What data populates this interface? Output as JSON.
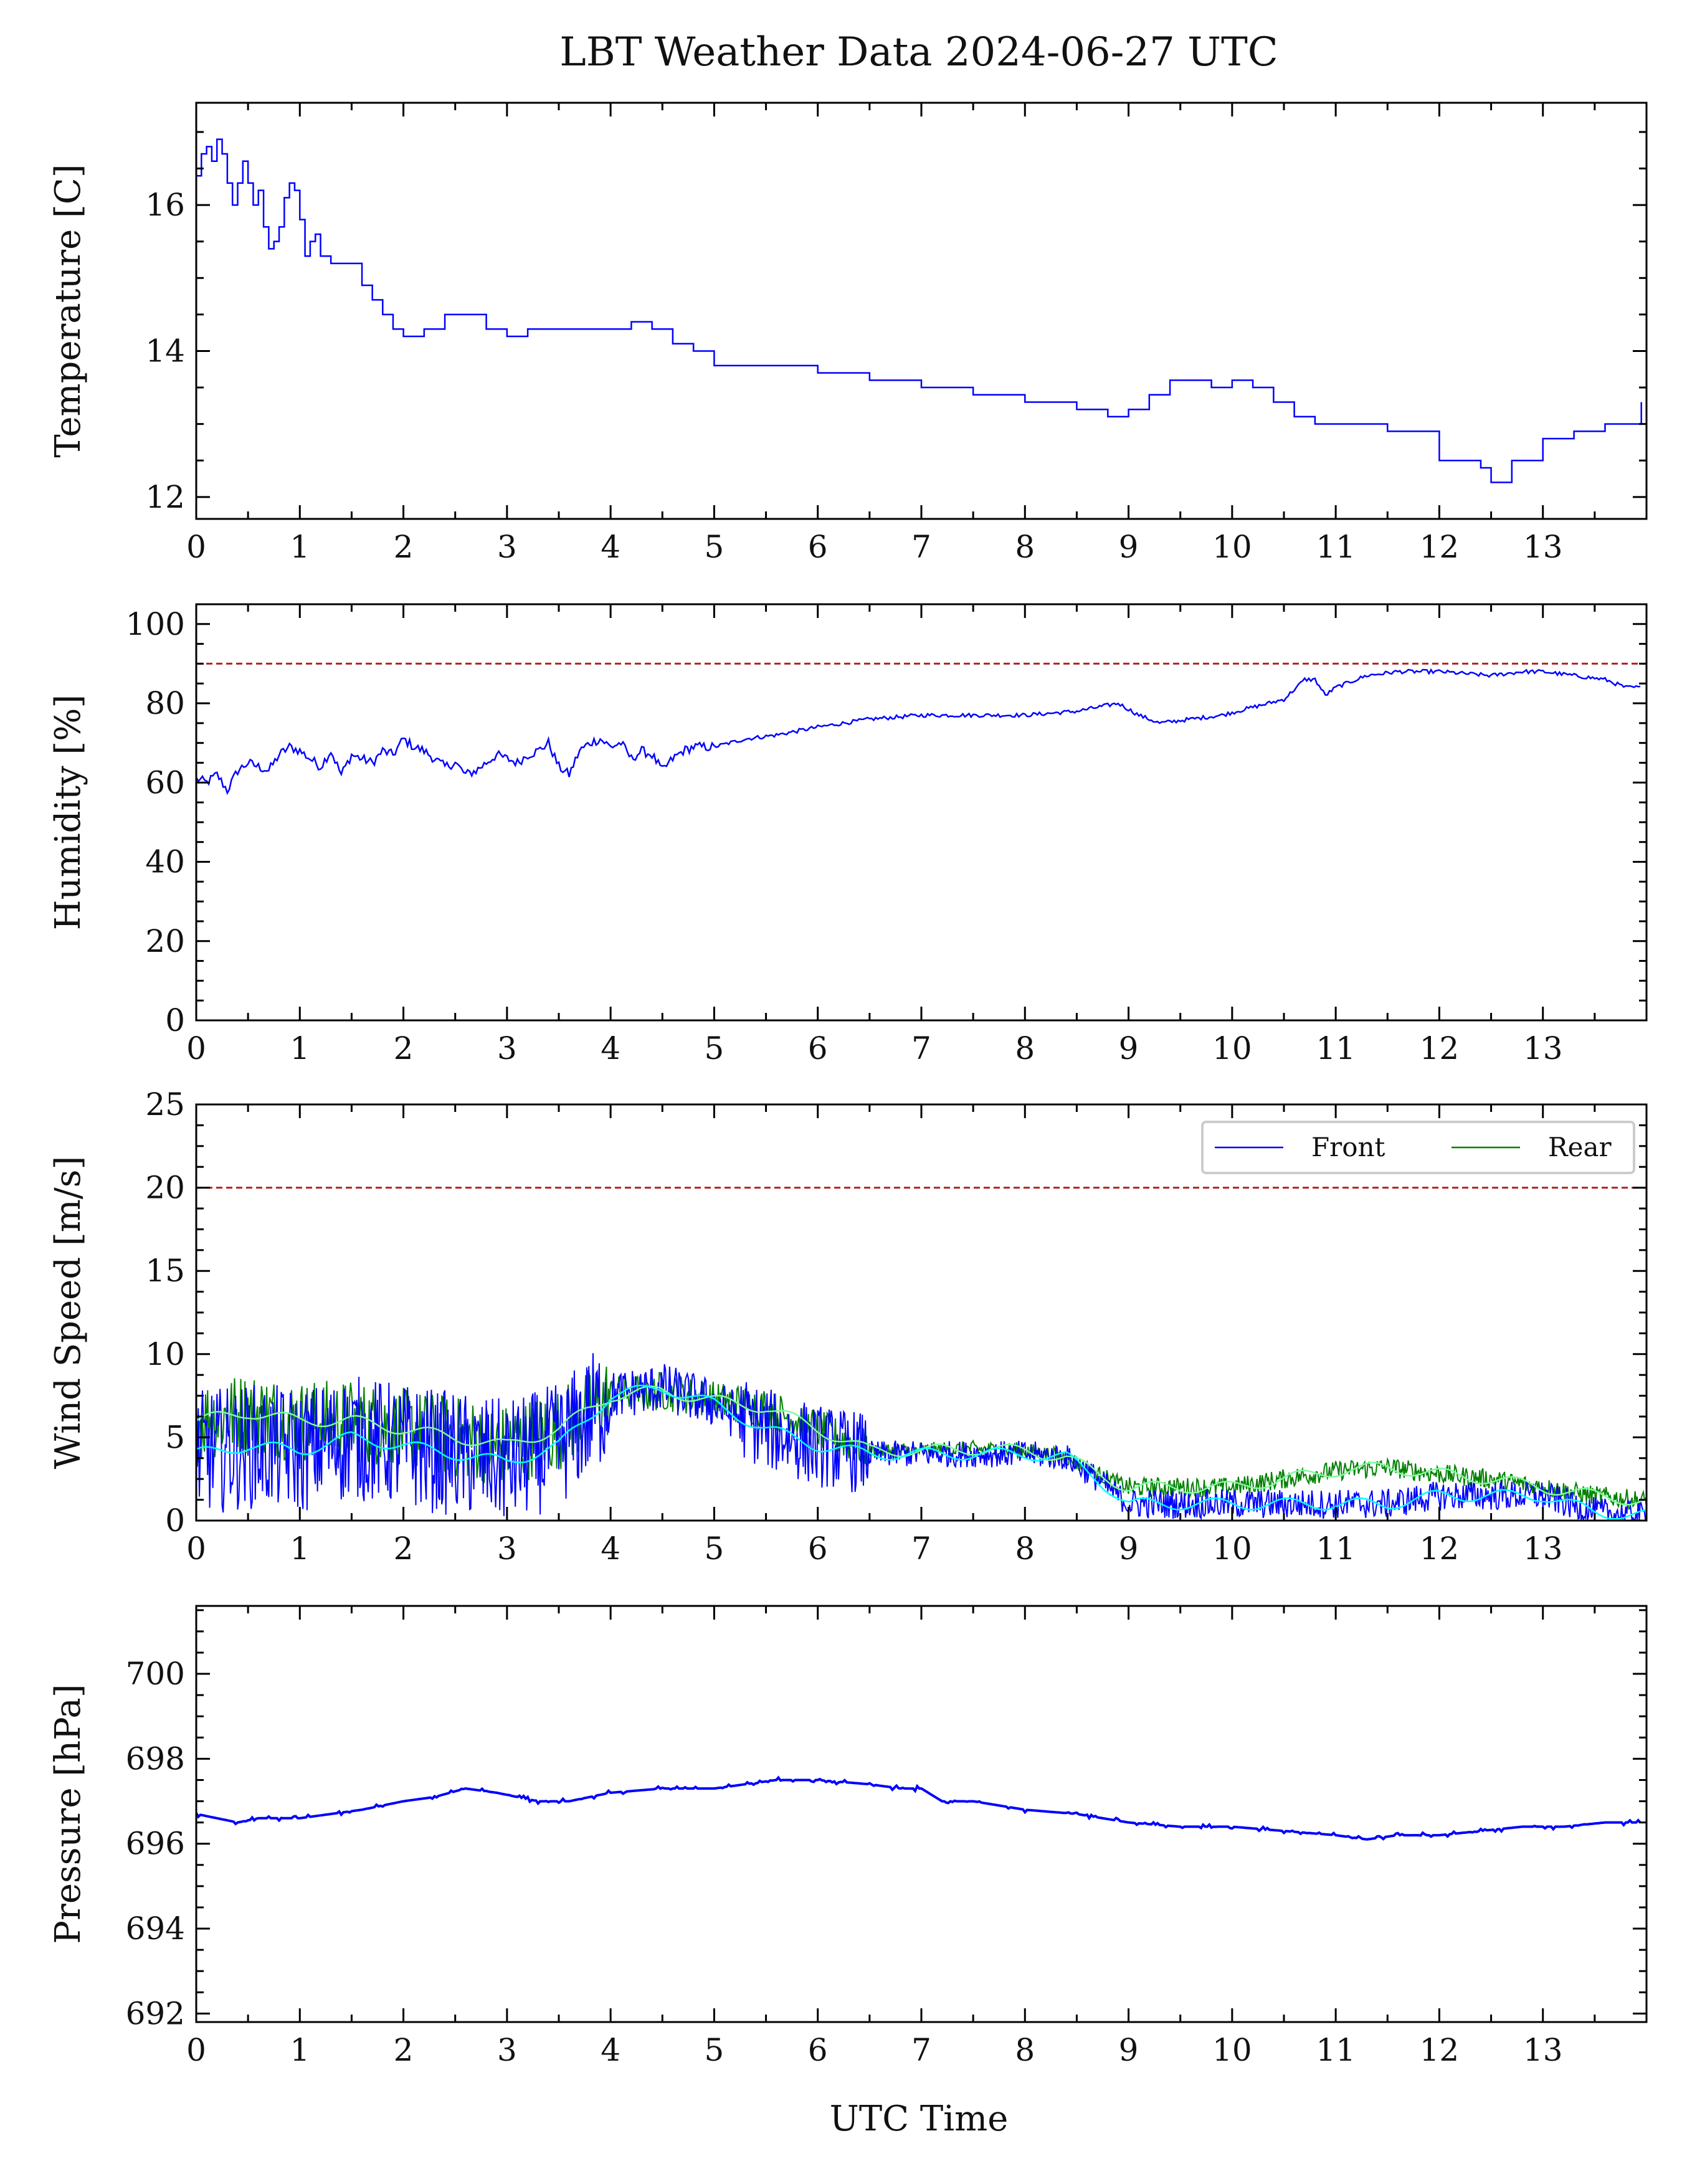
{
  "figure": {
    "title": "LBT Weather Data 2024-06-27 UTC",
    "xlabel": "UTC Time"
  },
  "colors": {
    "primary_series": "#0000ff",
    "rear_series": "#008000",
    "smooth_overlay": "#00ffff",
    "threshold": "#b22222",
    "axis": "#000000",
    "legend_border": "#cccccc"
  },
  "chart_data": [
    {
      "type": "line",
      "panel": "temperature",
      "ylabel": "Temperature [C]",
      "xlim": [
        0,
        14
      ],
      "ylim": [
        11.7,
        17.4
      ],
      "xticks": [
        0,
        1,
        2,
        3,
        4,
        5,
        6,
        7,
        8,
        9,
        10,
        11,
        12,
        13
      ],
      "yticks": [
        12,
        14,
        16
      ],
      "grid": false,
      "series": [
        {
          "x": [
            0,
            0.05,
            0.1,
            0.15,
            0.2,
            0.25,
            0.3,
            0.35,
            0.4,
            0.45,
            0.5,
            0.55,
            0.6,
            0.65,
            0.7,
            0.75,
            0.8,
            0.85,
            0.9,
            0.95,
            1.0,
            1.05,
            1.1,
            1.15,
            1.2,
            1.3,
            1.4,
            1.5,
            1.6,
            1.7,
            1.8,
            1.9,
            2.0,
            2.2,
            2.4,
            2.6,
            2.8,
            3.0,
            3.2,
            3.4,
            3.6,
            3.8,
            4.0,
            4.2,
            4.4,
            4.6,
            4.8,
            5.0,
            5.5,
            6.0,
            6.5,
            7.0,
            7.5,
            8.0,
            8.5,
            8.8,
            9.0,
            9.2,
            9.4,
            9.6,
            9.8,
            10.0,
            10.2,
            10.4,
            10.6,
            10.8,
            11.0,
            11.5,
            12.0,
            12.2,
            12.4,
            12.5,
            12.7,
            13.0,
            13.3,
            13.6,
            13.95
          ],
          "y": [
            16.4,
            16.7,
            16.8,
            16.6,
            16.9,
            16.7,
            16.3,
            16.0,
            16.3,
            16.6,
            16.3,
            16.0,
            16.2,
            15.7,
            15.4,
            15.5,
            15.7,
            16.1,
            16.3,
            16.2,
            15.8,
            15.3,
            15.5,
            15.6,
            15.3,
            15.2,
            15.2,
            15.2,
            14.9,
            14.7,
            14.5,
            14.3,
            14.2,
            14.3,
            14.5,
            14.5,
            14.3,
            14.2,
            14.3,
            14.3,
            14.3,
            14.3,
            14.3,
            14.4,
            14.3,
            14.1,
            14.0,
            13.8,
            13.8,
            13.7,
            13.6,
            13.5,
            13.4,
            13.3,
            13.2,
            13.1,
            13.2,
            13.4,
            13.6,
            13.6,
            13.5,
            13.6,
            13.5,
            13.3,
            13.1,
            13.0,
            13.0,
            12.9,
            12.5,
            12.5,
            12.4,
            12.2,
            12.5,
            12.8,
            12.9,
            13.0,
            13.3
          ]
        }
      ]
    },
    {
      "type": "line",
      "panel": "humidity",
      "ylabel": "Humidity [%]",
      "xlim": [
        0,
        14
      ],
      "ylim": [
        0,
        105
      ],
      "xticks": [
        0,
        1,
        2,
        3,
        4,
        5,
        6,
        7,
        8,
        9,
        10,
        11,
        12,
        13
      ],
      "yticks": [
        0,
        20,
        40,
        60,
        80,
        100
      ],
      "threshold": 90,
      "grid": false,
      "series": [
        {
          "x": [
            0,
            0.1,
            0.2,
            0.3,
            0.4,
            0.5,
            0.6,
            0.7,
            0.8,
            0.9,
            1.0,
            1.1,
            1.2,
            1.3,
            1.4,
            1.5,
            1.6,
            1.7,
            1.8,
            1.9,
            2.0,
            2.1,
            2.2,
            2.3,
            2.4,
            2.5,
            2.6,
            2.7,
            2.8,
            2.9,
            3.0,
            3.1,
            3.2,
            3.3,
            3.4,
            3.5,
            3.6,
            3.7,
            3.8,
            3.9,
            4.0,
            4.1,
            4.2,
            4.3,
            4.4,
            4.5,
            4.6,
            4.7,
            4.8,
            5.0,
            5.3,
            5.6,
            6.0,
            6.5,
            7.0,
            7.5,
            8.0,
            8.5,
            8.9,
            9.1,
            9.3,
            9.6,
            9.9,
            10.2,
            10.5,
            10.7,
            10.8,
            10.9,
            11.0,
            11.3,
            11.6,
            12.0,
            12.5,
            12.8,
            13.0,
            13.3,
            13.6,
            13.8,
            13.95
          ],
          "y": [
            61,
            60,
            62,
            58,
            63,
            65,
            64,
            63,
            67,
            69,
            68,
            66,
            64,
            68,
            62,
            67,
            66,
            65,
            68,
            67,
            71,
            69,
            68,
            66,
            64,
            65,
            62,
            63,
            65,
            67,
            66,
            65,
            67,
            68,
            70,
            64,
            62,
            68,
            70,
            71,
            69,
            70,
            66,
            68,
            67,
            63,
            66,
            68,
            69,
            69,
            71,
            72,
            74,
            76,
            77,
            77,
            77,
            78,
            80,
            77,
            75,
            76,
            77,
            79,
            81,
            86,
            86,
            82,
            84,
            87,
            88,
            88,
            87,
            88,
            88,
            87,
            86,
            84,
            84
          ]
        }
      ]
    },
    {
      "type": "line",
      "panel": "wind",
      "ylabel": "Wind Speed [m/s]",
      "xlim": [
        0,
        14
      ],
      "ylim": [
        0,
        25
      ],
      "xticks": [
        0,
        1,
        2,
        3,
        4,
        5,
        6,
        7,
        8,
        9,
        10,
        11,
        12,
        13
      ],
      "yticks": [
        0,
        5,
        10,
        15,
        20,
        25
      ],
      "threshold": 20,
      "legend_position": "top-right",
      "grid": false,
      "series": [
        {
          "name": "Front",
          "x": [
            0,
            0.5,
            1.0,
            1.5,
            2.0,
            2.5,
            3.0,
            3.5,
            4.0,
            4.5,
            5.0,
            5.5,
            6.0,
            6.5,
            7.0,
            7.5,
            8.0,
            8.4,
            8.7,
            9.0,
            9.5,
            10.0,
            10.5,
            11.0,
            11.5,
            12.0,
            12.5,
            13.0,
            13.5,
            13.95
          ],
          "y": [
            4.0,
            4.5,
            4.2,
            5.0,
            4.5,
            4.0,
            3.5,
            4.5,
            7.5,
            8.0,
            7.0,
            5.5,
            4.5,
            4.0,
            4.0,
            4.0,
            4.0,
            3.8,
            2.5,
            1.0,
            1.0,
            1.0,
            1.0,
            1.0,
            1.0,
            1.5,
            1.5,
            1.5,
            0.5,
            0.3
          ]
        },
        {
          "name": "Rear",
          "x": [
            0,
            0.5,
            1.0,
            1.5,
            2.0,
            2.5,
            3.0,
            3.5,
            4.0,
            4.5,
            5.0,
            5.5,
            6.0,
            6.5,
            7.0,
            7.5,
            8.0,
            8.4,
            8.7,
            9.0,
            9.5,
            10.0,
            10.5,
            11.0,
            11.5,
            12.0,
            12.5,
            13.0,
            13.5,
            13.95
          ],
          "y": [
            6.0,
            6.5,
            6.0,
            6.0,
            5.5,
            5.0,
            4.5,
            5.5,
            7.5,
            7.8,
            7.2,
            6.8,
            5.5,
            4.2,
            4.2,
            4.3,
            4.2,
            3.8,
            2.8,
            2.0,
            2.0,
            2.0,
            2.5,
            3.0,
            3.2,
            2.8,
            2.5,
            2.0,
            1.5,
            1.2
          ]
        }
      ]
    },
    {
      "type": "line",
      "panel": "pressure",
      "ylabel": "Pressure [hPa]",
      "xlim": [
        0,
        14
      ],
      "ylim": [
        691.8,
        701.6
      ],
      "xticks": [
        0,
        1,
        2,
        3,
        4,
        5,
        6,
        7,
        8,
        9,
        10,
        11,
        12,
        13
      ],
      "yticks": [
        692,
        694,
        696,
        698,
        700
      ],
      "grid": false,
      "series": [
        {
          "x": [
            0,
            0.2,
            0.4,
            0.6,
            0.8,
            1.0,
            1.3,
            1.6,
            2.0,
            2.3,
            2.6,
            2.9,
            3.1,
            3.3,
            3.6,
            4.0,
            4.5,
            5.0,
            5.3,
            5.6,
            6.0,
            6.5,
            6.8,
            7.0,
            7.2,
            7.5,
            8.0,
            8.5,
            9.0,
            9.5,
            10.0,
            10.5,
            11.0,
            11.3,
            11.6,
            12.0,
            12.4,
            12.8,
            13.2,
            13.6,
            13.95
          ],
          "y": [
            696.7,
            696.6,
            696.5,
            696.6,
            696.6,
            696.6,
            696.7,
            696.8,
            697.0,
            697.1,
            697.3,
            697.2,
            697.1,
            697.0,
            697.0,
            697.2,
            697.3,
            697.3,
            697.4,
            697.5,
            697.5,
            697.4,
            697.3,
            697.3,
            697.0,
            697.0,
            696.8,
            696.7,
            696.5,
            696.4,
            696.4,
            696.3,
            696.2,
            696.1,
            696.2,
            696.2,
            696.3,
            696.4,
            696.4,
            696.5,
            696.5
          ]
        }
      ]
    }
  ]
}
